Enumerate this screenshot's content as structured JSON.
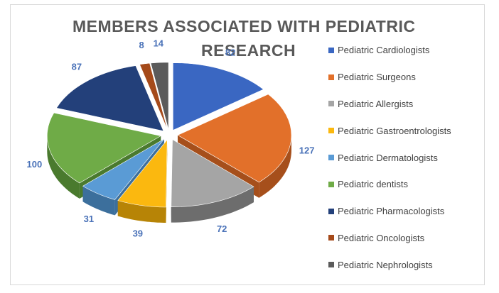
{
  "chart_data": {
    "type": "pie",
    "title": "MEMBERS ASSOCIATED WITH PEDIATRIC RESEARCH",
    "title_lines": [
      "MEMBERS ASSOCIATED WITH PEDIATRIC",
      "RESEARCH"
    ],
    "style": "3d-exploded",
    "legend_position": "right",
    "label_color": "#4a72b8",
    "categories": [
      "Pediatric Cardiologists",
      "Pediatric Surgeons",
      "Pediatric Allergists",
      "Pediatric Gastroentrologists",
      "Pediatric Dermatologists",
      "Pediatric dentists",
      "Pediatric Pharmacologists",
      "Pediatric Oncologists",
      "Pediatric Nephrologists"
    ],
    "values": [
      82,
      127,
      72,
      39,
      31,
      100,
      87,
      8,
      14
    ],
    "colors": [
      "#3a67c2",
      "#e2702a",
      "#a5a5a5",
      "#fbb80f",
      "#5a9bd5",
      "#6fab47",
      "#23407a",
      "#a54a1a",
      "#5b5b5b"
    ],
    "side_colors": [
      "#27488b",
      "#a64f1b",
      "#6d6d6d",
      "#b78406",
      "#3c6f9c",
      "#4a7a2e",
      "#152a52",
      "#6f300f",
      "#3a3a3a"
    ]
  }
}
